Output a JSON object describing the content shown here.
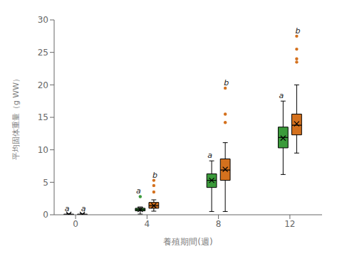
{
  "chart_data": {
    "type": "box",
    "xlabel": "養殖期間(週)",
    "ylabel": "平均固体重量（g WW）",
    "x": [
      0,
      4,
      8,
      12
    ],
    "xlim": [
      -1.2,
      13.8
    ],
    "xticks": [
      0,
      4,
      8,
      12
    ],
    "ylim": [
      0,
      30
    ],
    "yticks": [
      0,
      5,
      10,
      15,
      20,
      25,
      30
    ],
    "grid": false,
    "series": [
      {
        "color": "#3a9a3a",
        "boxes": [
          {
            "q1": 0.0,
            "median": 0.05,
            "q3": 0.1,
            "mean": 0.05,
            "whislo": 0.0,
            "whishi": 0.15,
            "fliers": []
          },
          {
            "q1": 0.6,
            "median": 0.8,
            "q3": 1.0,
            "mean": 0.8,
            "whislo": 0.1,
            "whishi": 1.2,
            "fliers": [
              2.8
            ]
          },
          {
            "q1": 4.2,
            "median": 5.3,
            "q3": 6.3,
            "mean": 5.3,
            "whislo": 0.5,
            "whishi": 8.3,
            "fliers": []
          },
          {
            "q1": 10.3,
            "median": 11.9,
            "q3": 13.5,
            "mean": 11.8,
            "whislo": 6.2,
            "whishi": 17.5,
            "fliers": []
          }
        ],
        "labels": [
          "a",
          "a",
          "a",
          "a"
        ]
      },
      {
        "color": "#d4711e",
        "boxes": [
          {
            "q1": 0.0,
            "median": 0.05,
            "q3": 0.1,
            "mean": 0.05,
            "whislo": 0.0,
            "whishi": 0.15,
            "fliers": []
          },
          {
            "q1": 1.0,
            "median": 1.4,
            "q3": 1.9,
            "mean": 1.4,
            "whislo": 0.55,
            "whishi": 2.3,
            "fliers": [
              3.5,
              4.5,
              5.3
            ]
          },
          {
            "q1": 5.3,
            "median": 6.9,
            "q3": 8.6,
            "mean": 7.0,
            "whislo": 0.5,
            "whishi": 11.1,
            "fliers": [
              14.2,
              15.5,
              19.5
            ]
          },
          {
            "q1": 12.3,
            "median": 13.8,
            "q3": 15.5,
            "mean": 14.0,
            "whislo": 9.5,
            "whishi": 20.0,
            "fliers": [
              23.5,
              24.0,
              25.5,
              27.5
            ]
          }
        ],
        "labels": [
          "a",
          "b",
          "b",
          "b"
        ]
      }
    ]
  }
}
